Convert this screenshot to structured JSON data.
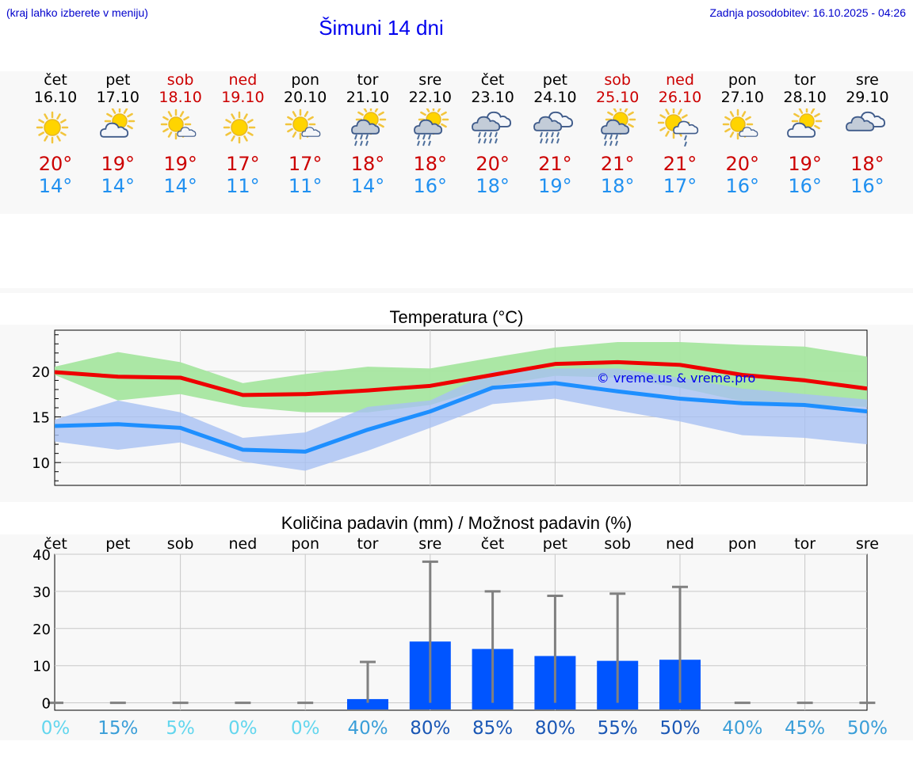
{
  "header": {
    "menu_hint": "(kraj lahko izberete v meniju)",
    "title": "Šimuni 14 dni",
    "updated": "Zadnja posodobitev: 16.10.2025 - 04:26"
  },
  "colors": {
    "max": "#ee0000",
    "min": "#1e8fff",
    "max_band": "#a6e6a0",
    "min_band": "#a7c1f2",
    "bar": "#0055ff",
    "err": "#808080",
    "bg": "#f8f8f8"
  },
  "days": [
    {
      "name": "čet",
      "date": "16.10",
      "weekend": false,
      "icon": "sun-icon",
      "max": "20°",
      "min": "14°"
    },
    {
      "name": "pet",
      "date": "17.10",
      "weekend": false,
      "icon": "sun-cloud-icon",
      "max": "19°",
      "min": "14°"
    },
    {
      "name": "sob",
      "date": "18.10",
      "weekend": true,
      "icon": "sun-small-cloud-icon",
      "max": "19°",
      "min": "14°"
    },
    {
      "name": "ned",
      "date": "19.10",
      "weekend": true,
      "icon": "sun-icon",
      "max": "17°",
      "min": "11°"
    },
    {
      "name": "pon",
      "date": "20.10",
      "weekend": false,
      "icon": "sun-small-cloud-icon",
      "max": "17°",
      "min": "11°"
    },
    {
      "name": "tor",
      "date": "21.10",
      "weekend": false,
      "icon": "sun-cloud-rain-icon",
      "max": "18°",
      "min": "14°"
    },
    {
      "name": "sre",
      "date": "22.10",
      "weekend": false,
      "icon": "sun-cloud-rain-icon",
      "max": "18°",
      "min": "16°"
    },
    {
      "name": "čet",
      "date": "23.10",
      "weekend": false,
      "icon": "cloud-rain-icon",
      "max": "20°",
      "min": "18°"
    },
    {
      "name": "pet",
      "date": "24.10",
      "weekend": false,
      "icon": "cloud-rain-icon",
      "max": "21°",
      "min": "19°"
    },
    {
      "name": "sob",
      "date": "25.10",
      "weekend": true,
      "icon": "sun-cloud-rain-icon",
      "max": "21°",
      "min": "18°"
    },
    {
      "name": "ned",
      "date": "26.10",
      "weekend": true,
      "icon": "sun-cloud-light-rain-icon",
      "max": "21°",
      "min": "17°"
    },
    {
      "name": "pon",
      "date": "27.10",
      "weekend": false,
      "icon": "sun-small-cloud-icon",
      "max": "20°",
      "min": "16°"
    },
    {
      "name": "tor",
      "date": "28.10",
      "weekend": false,
      "icon": "sun-cloud-icon",
      "max": "19°",
      "min": "16°"
    },
    {
      "name": "sre",
      "date": "29.10",
      "weekend": false,
      "icon": "cloud-icon",
      "max": "18°",
      "min": "16°"
    }
  ],
  "chart_data": [
    {
      "type": "line",
      "title": "Temperatura (°C)",
      "watermark": "© vreme.us & vreme.pro",
      "ylim": [
        7.5,
        24.5
      ],
      "yticks": [
        10,
        15,
        20
      ],
      "grid": true,
      "x": [
        0,
        1,
        2,
        3,
        4,
        5,
        6,
        7,
        8,
        9,
        10,
        11,
        12,
        13
      ],
      "series": [
        {
          "name": "max",
          "values": [
            19.9,
            19.4,
            19.3,
            17.4,
            17.5,
            17.9,
            18.4,
            19.6,
            20.8,
            21.0,
            20.7,
            19.6,
            19.0,
            18.1
          ]
        },
        {
          "name": "max_low",
          "values": [
            19.6,
            16.8,
            17.5,
            16.1,
            15.5,
            15.5,
            16.3,
            18.4,
            19.5,
            19.3,
            18.2,
            16.7,
            16.3,
            16.1
          ]
        },
        {
          "name": "max_high",
          "values": [
            20.5,
            22.1,
            21.0,
            18.7,
            19.7,
            20.5,
            20.3,
            21.5,
            22.6,
            23.2,
            23.2,
            22.9,
            22.7,
            21.6
          ]
        },
        {
          "name": "min",
          "values": [
            14.0,
            14.2,
            13.8,
            11.4,
            11.2,
            13.6,
            15.6,
            18.2,
            18.7,
            17.8,
            17.0,
            16.5,
            16.3,
            15.6
          ]
        },
        {
          "name": "min_low",
          "values": [
            12.3,
            11.4,
            12.2,
            10.1,
            9.1,
            11.3,
            13.8,
            16.4,
            17.0,
            15.7,
            14.5,
            13.0,
            12.7,
            12.0
          ]
        },
        {
          "name": "min_high",
          "values": [
            14.7,
            16.8,
            15.5,
            12.7,
            13.3,
            16.1,
            16.8,
            20.0,
            20.3,
            20.3,
            19.3,
            18.1,
            17.5,
            16.9
          ]
        }
      ]
    },
    {
      "type": "bar",
      "title": "Količina padavin (mm) / Možnost padavin (%)",
      "categories": [
        "čet",
        "pet",
        "sob",
        "ned",
        "pon",
        "tor",
        "sre",
        "čet",
        "pet",
        "sob",
        "ned",
        "pon",
        "tor",
        "sre"
      ],
      "ylim": [
        -2,
        40
      ],
      "yticks": [
        0,
        10,
        20,
        30,
        40
      ],
      "grid": true,
      "series": [
        {
          "name": "precipitation_mm",
          "values": [
            0,
            0,
            0,
            0,
            0,
            1,
            16.5,
            14.5,
            12.6,
            11.3,
            11.6,
            0,
            0,
            0
          ]
        },
        {
          "name": "precipitation_max_mm",
          "values": [
            0,
            0,
            0,
            0,
            0,
            11,
            38,
            30,
            28.8,
            29.4,
            31.2,
            0,
            0,
            0
          ]
        }
      ],
      "probability": [
        "0%",
        "15%",
        "5%",
        "0%",
        "0%",
        "40%",
        "80%",
        "85%",
        "80%",
        "55%",
        "50%",
        "40%",
        "45%",
        "50%"
      ],
      "probability_colors": [
        "#63d6ee",
        "#3a9ed8",
        "#63d6ee",
        "#63d6ee",
        "#63d6ee",
        "#3a9ed8",
        "#1a57b5",
        "#1a57b5",
        "#1a57b5",
        "#1a57b5",
        "#1a57b5",
        "#3a9ed8",
        "#3a9ed8",
        "#3a9ed8"
      ]
    }
  ]
}
